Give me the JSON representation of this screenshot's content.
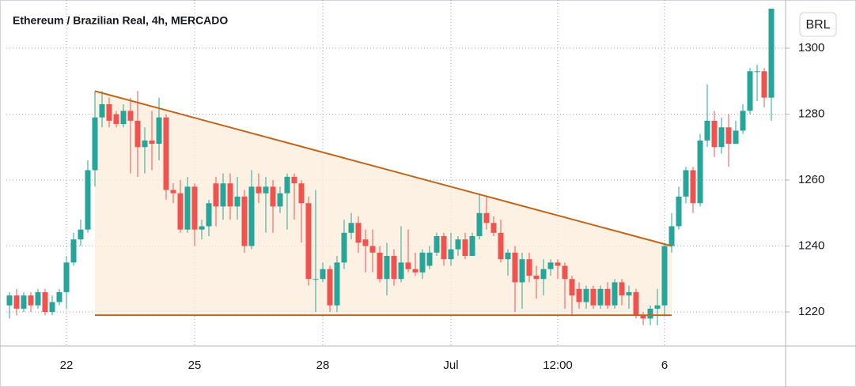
{
  "chart_data": {
    "type": "candlestick",
    "title": "Ethereum / Brazilian Real, 4h, MERCADO",
    "currency": "BRL",
    "up_color": "#26a69a",
    "down_color": "#ef5350",
    "grid": true,
    "ylim": [
      1209.7,
      1312.7
    ],
    "yticks": [
      1220,
      1240,
      1260,
      1280,
      1300
    ],
    "categories": [
      null,
      null,
      null,
      null,
      null,
      null,
      null,
      null,
      "22",
      null,
      null,
      null,
      null,
      null,
      null,
      null,
      null,
      null,
      null,
      null,
      null,
      null,
      null,
      null,
      null,
      null,
      "25",
      null,
      null,
      null,
      null,
      null,
      null,
      null,
      null,
      null,
      null,
      null,
      null,
      null,
      null,
      null,
      null,
      null,
      "28",
      null,
      null,
      null,
      null,
      null,
      null,
      null,
      null,
      null,
      null,
      null,
      null,
      null,
      null,
      null,
      null,
      null,
      "Jul",
      null,
      null,
      null,
      null,
      null,
      null,
      null,
      null,
      null,
      null,
      null,
      null,
      null,
      null,
      "12:00",
      null,
      null,
      null,
      null,
      null,
      null,
      null,
      null,
      null,
      null,
      null,
      null,
      null,
      null,
      "6",
      null,
      null,
      null,
      null,
      null,
      null,
      null,
      null,
      null,
      null,
      null,
      null,
      null,
      null,
      null
    ],
    "open": [
      1222,
      1225,
      1221,
      1225,
      1222,
      1226,
      1220,
      1223,
      1226,
      1235,
      1242,
      1245,
      1263,
      1279,
      1283,
      1280,
      1277,
      1281,
      1278,
      1270,
      1272,
      1271,
      1279,
      1257,
      1256,
      1245,
      1258,
      1245,
      1246,
      1259,
      1252,
      1259,
      1252,
      1255,
      1240,
      1258,
      1256,
      1258,
      1252,
      1256,
      1261,
      1259,
      1253,
      1230,
      1230,
      1233,
      1222,
      1235,
      1244,
      1247,
      1242,
      1240,
      1238,
      1230,
      1237,
      1230,
      1235,
      1233,
      1232,
      1234,
      1238,
      1243,
      1236,
      1239,
      1242,
      1237,
      1243,
      1250,
      1247,
      1244,
      1236,
      1238,
      1229,
      1236,
      1231,
      1230,
      1233,
      1235,
      1234,
      1230,
      1227,
      1223,
      1227,
      1222,
      1227,
      1222,
      1229,
      1225,
      1226,
      1219,
      1218,
      1221,
      1222,
      1240,
      1246,
      1255,
      1263,
      1253,
      1272,
      1278,
      1270,
      1276,
      1271,
      1275,
      1281,
      1293,
      1293,
      1285
    ],
    "high": [
      1226,
      1227,
      1226,
      1226,
      1227,
      1227,
      1225,
      1227,
      1237,
      1244,
      1248,
      1266,
      1287,
      1287,
      1285,
      1281,
      1283,
      1285,
      1287,
      1276,
      1281,
      1285,
      1280,
      1259,
      1260,
      1261,
      1259,
      1248,
      1254,
      1261,
      1262,
      1262,
      1261,
      1257,
      1263,
      1262,
      1261,
      1260,
      1258,
      1262,
      1262,
      1260,
      1255,
      1257,
      1235,
      1234,
      1237,
      1248,
      1250,
      1249,
      1245,
      1245,
      1240,
      1241,
      1239,
      1246,
      1245,
      1238,
      1239,
      1240,
      1244,
      1244,
      1244,
      1243,
      1244,
      1244,
      1256,
      1255,
      1249,
      1248,
      1239,
      1240,
      1238,
      1238,
      1234,
      1236,
      1236,
      1236,
      1235,
      1231,
      1229,
      1228,
      1228,
      1228,
      1229,
      1230,
      1230,
      1228,
      1227,
      1220,
      1222,
      1227,
      1241,
      1250,
      1258,
      1264,
      1264,
      1274,
      1289,
      1281,
      1279,
      1280,
      1278,
      1283,
      1294,
      1295,
      1294,
      1312
    ],
    "low": [
      1218,
      1219,
      1220,
      1220,
      1221,
      1219,
      1219,
      1222,
      1221,
      1234,
      1240,
      1244,
      1258,
      1276,
      1276,
      1276,
      1276,
      1262,
      1261,
      1262,
      1263,
      1266,
      1254,
      1253,
      1244,
      1244,
      1240,
      1242,
      1243,
      1246,
      1248,
      1248,
      1248,
      1238,
      1239,
      1253,
      1244,
      1244,
      1250,
      1245,
      1248,
      1241,
      1228,
      1220,
      1229,
      1220,
      1220,
      1233,
      1242,
      1238,
      1232,
      1232,
      1229,
      1225,
      1228,
      1229,
      1232,
      1231,
      1230,
      1233,
      1237,
      1234,
      1234,
      1237,
      1236,
      1237,
      1242,
      1245,
      1243,
      1235,
      1231,
      1220,
      1221,
      1229,
      1224,
      1225,
      1231,
      1230,
      1221,
      1219,
      1221,
      1221,
      1221,
      1221,
      1221,
      1221,
      1222,
      1221,
      1218,
      1216,
      1216,
      1216,
      1219,
      1238,
      1245,
      1253,
      1250,
      1252,
      1270,
      1267,
      1268,
      1264,
      1271,
      1274,
      1280,
      1284,
      1282,
      1278
    ],
    "close": [
      1225,
      1221,
      1225,
      1222,
      1226,
      1220,
      1223,
      1226,
      1235,
      1242,
      1245,
      1263,
      1279,
      1283,
      1278,
      1277,
      1281,
      1278,
      1270,
      1272,
      1271,
      1279,
      1257,
      1256,
      1245,
      1258,
      1245,
      1246,
      1253,
      1252,
      1259,
      1252,
      1255,
      1240,
      1258,
      1256,
      1258,
      1252,
      1256,
      1261,
      1259,
      1253,
      1230,
      1230,
      1233,
      1222,
      1235,
      1244,
      1247,
      1241,
      1240,
      1238,
      1230,
      1237,
      1230,
      1235,
      1233,
      1232,
      1238,
      1238,
      1243,
      1236,
      1239,
      1242,
      1237,
      1243,
      1250,
      1247,
      1244,
      1236,
      1238,
      1229,
      1236,
      1231,
      1230,
      1233,
      1235,
      1234,
      1230,
      1225,
      1223,
      1227,
      1222,
      1227,
      1222,
      1229,
      1225,
      1226,
      1219,
      1218,
      1221,
      1222,
      1240,
      1246,
      1255,
      1263,
      1253,
      1272,
      1278,
      1270,
      1276,
      1271,
      1275,
      1281,
      1293,
      1293,
      1285,
      1312
    ],
    "pattern": {
      "start": 12,
      "end": 93,
      "upper": [
        1287,
        1240
      ],
      "lower": 1219,
      "line_color": "#c0661b",
      "fill_color": "#fdeedd"
    }
  }
}
